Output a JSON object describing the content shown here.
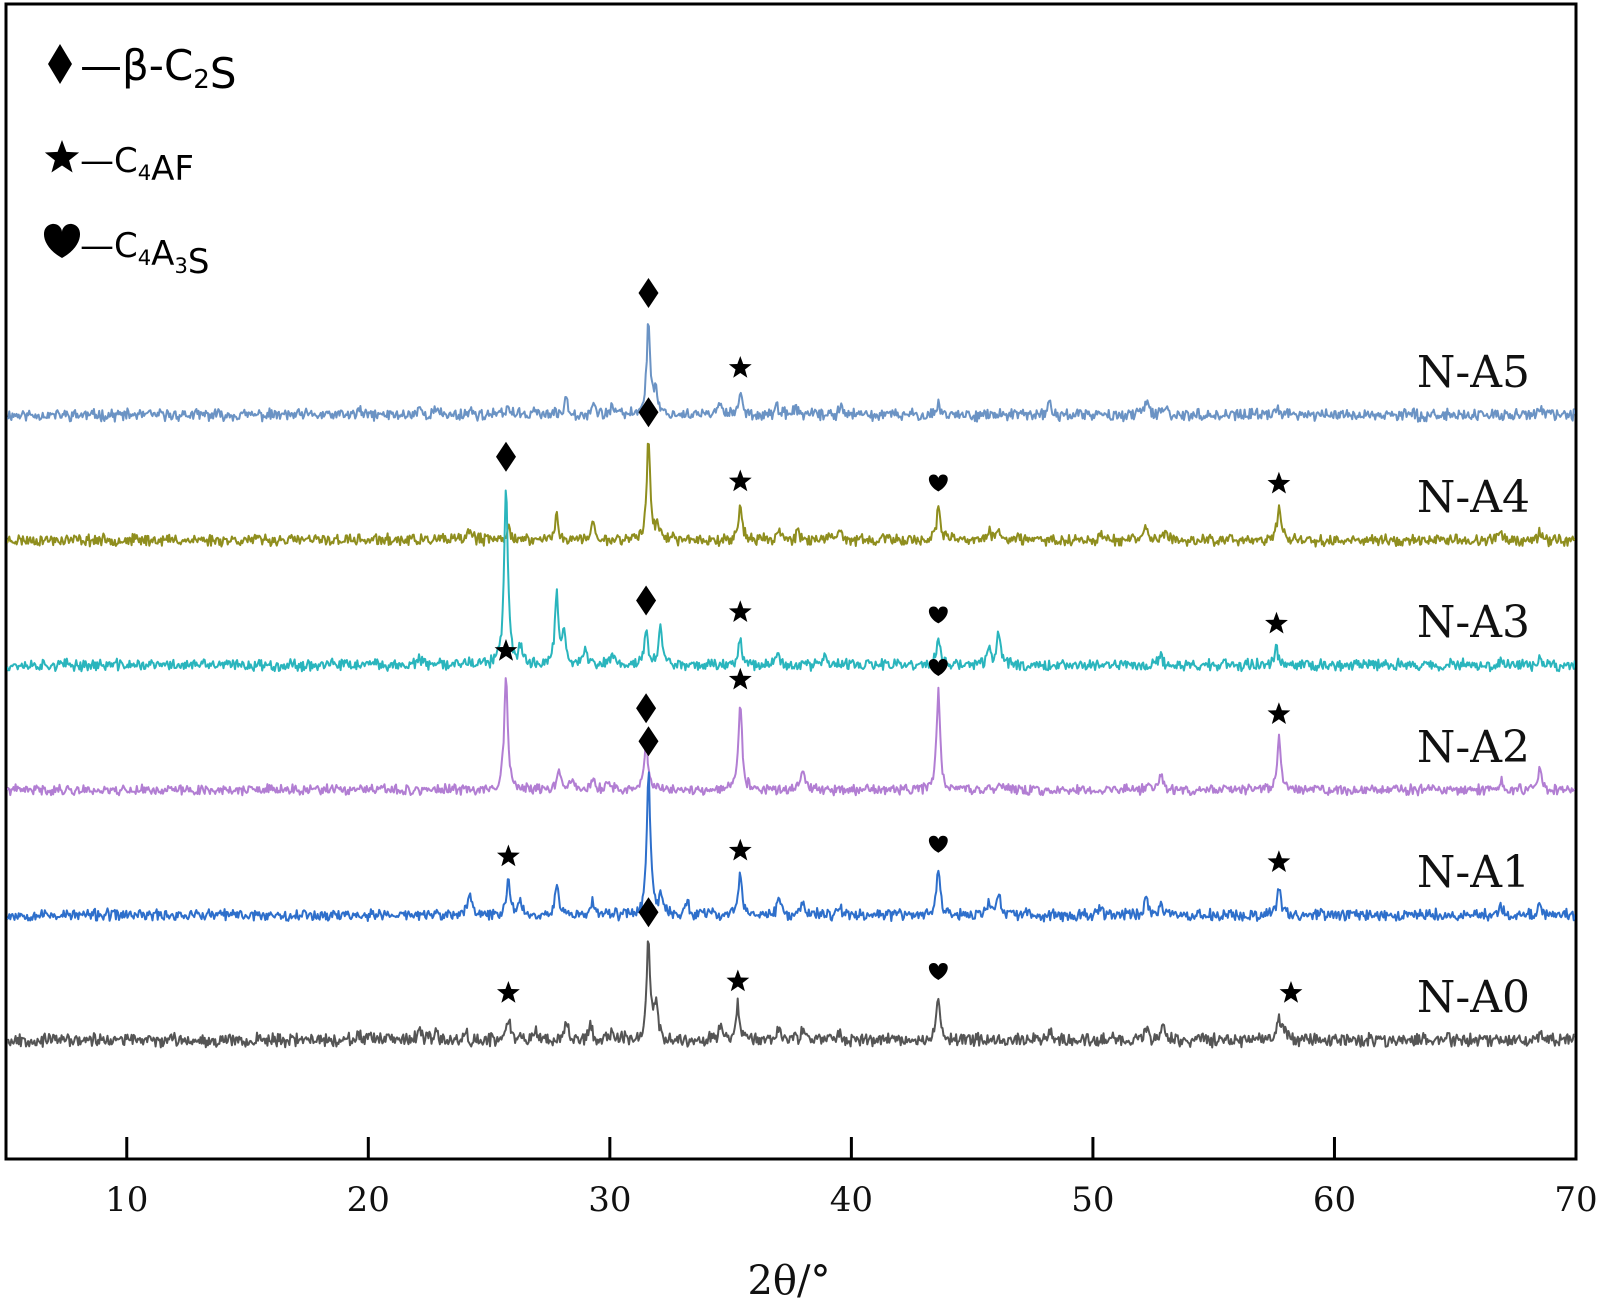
{
  "chart_data": {
    "type": "line",
    "xlabel": "2θ/°",
    "ylabel": "",
    "xlim": [
      5,
      70
    ],
    "xticks": [
      10,
      20,
      30,
      40,
      50,
      60,
      70
    ],
    "yticks_shown": false,
    "grid": false,
    "legend": {
      "placement": "top-left",
      "entries": [
        {
          "marker": "diamond",
          "symbol": "♦",
          "dash": "—",
          "phase": "β-C",
          "sub": "2",
          "tail": "S"
        },
        {
          "marker": "star",
          "symbol": "★",
          "dash": "—",
          "phase": "C",
          "sub": "4",
          "tail": "AF"
        },
        {
          "marker": "heart",
          "symbol": "♥",
          "dash": "—",
          "phase": "C",
          "sub": "4",
          "mid": "A",
          "sub2": "3",
          "tail": "S"
        }
      ]
    },
    "series": [
      {
        "name": "N-A5",
        "color": "#6b93c4",
        "offset": 5,
        "noise": 0.04,
        "seed": 11,
        "peaks": [
          [
            31.6,
            0.8
          ],
          [
            31.9,
            0.2
          ],
          [
            35.4,
            0.2
          ],
          [
            34.6,
            0.12
          ],
          [
            28.2,
            0.15
          ],
          [
            29.3,
            0.1
          ],
          [
            30.1,
            0.08
          ],
          [
            25.8,
            0.08
          ],
          [
            26.9,
            0.06
          ],
          [
            36.9,
            0.07
          ],
          [
            37.7,
            0.07
          ],
          [
            39.6,
            0.09
          ],
          [
            43.6,
            0.1
          ],
          [
            48.2,
            0.1
          ],
          [
            52.2,
            0.12
          ],
          [
            53.0,
            0.06
          ],
          [
            57.6,
            0.08
          ],
          [
            22.1,
            0.06
          ],
          [
            22.8,
            0.05
          ],
          [
            24.2,
            0.05
          ],
          [
            19.6,
            0.04
          ],
          [
            68.5,
            0.06
          ]
        ],
        "markers": [
          [
            "diamond",
            31.6
          ],
          [
            "star",
            35.4
          ]
        ]
      },
      {
        "name": "N-A4",
        "color": "#8f8e1e",
        "offset": 4,
        "noise": 0.04,
        "seed": 23,
        "peaks": [
          [
            31.6,
            0.85
          ],
          [
            32.0,
            0.12
          ],
          [
            35.4,
            0.3
          ],
          [
            43.6,
            0.28
          ],
          [
            57.7,
            0.28
          ],
          [
            27.8,
            0.2
          ],
          [
            29.3,
            0.14
          ],
          [
            25.8,
            0.12
          ],
          [
            24.2,
            0.1
          ],
          [
            37.0,
            0.1
          ],
          [
            37.8,
            0.08
          ],
          [
            39.5,
            0.08
          ],
          [
            45.7,
            0.08
          ],
          [
            46.1,
            0.1
          ],
          [
            50.3,
            0.06
          ],
          [
            52.2,
            0.12
          ],
          [
            53.0,
            0.06
          ],
          [
            66.8,
            0.06
          ],
          [
            68.5,
            0.08
          ]
        ],
        "markers": [
          [
            "diamond",
            31.6
          ],
          [
            "star",
            35.4
          ],
          [
            "heart",
            43.6
          ],
          [
            "star",
            57.7
          ]
        ]
      },
      {
        "name": "N-A3",
        "color": "#2ab5bd",
        "offset": 3,
        "noise": 0.04,
        "seed": 37,
        "peaks": [
          [
            25.7,
            1.55
          ],
          [
            27.8,
            0.6
          ],
          [
            28.1,
            0.3
          ],
          [
            31.5,
            0.3
          ],
          [
            32.1,
            0.32
          ],
          [
            35.4,
            0.25
          ],
          [
            43.6,
            0.22
          ],
          [
            46.1,
            0.3
          ],
          [
            45.7,
            0.15
          ],
          [
            26.3,
            0.15
          ],
          [
            29.0,
            0.12
          ],
          [
            30.1,
            0.1
          ],
          [
            36.9,
            0.12
          ],
          [
            38.9,
            0.08
          ],
          [
            52.8,
            0.07
          ],
          [
            57.6,
            0.15
          ],
          [
            22.1,
            0.06
          ],
          [
            24.0,
            0.06
          ],
          [
            66.9,
            0.05
          ],
          [
            68.5,
            0.06
          ]
        ],
        "markers": [
          [
            "diamond",
            25.7
          ],
          [
            "diamond",
            31.5
          ],
          [
            "star",
            35.4
          ],
          [
            "heart",
            43.6
          ],
          [
            "star",
            57.6
          ]
        ]
      },
      {
        "name": "N-A2",
        "color": "#b27ed3",
        "offset": 2,
        "noise": 0.035,
        "seed": 41,
        "peaks": [
          [
            25.7,
            1.0
          ],
          [
            31.5,
            0.45
          ],
          [
            35.4,
            0.75
          ],
          [
            43.6,
            0.85
          ],
          [
            57.7,
            0.45
          ],
          [
            27.9,
            0.15
          ],
          [
            28.4,
            0.1
          ],
          [
            29.3,
            0.08
          ],
          [
            30.0,
            0.07
          ],
          [
            38.0,
            0.15
          ],
          [
            46.1,
            0.06
          ],
          [
            52.8,
            0.15
          ],
          [
            52.3,
            0.07
          ],
          [
            66.9,
            0.08
          ],
          [
            68.5,
            0.18
          ]
        ],
        "markers": [
          [
            "star",
            25.7
          ],
          [
            "diamond",
            31.5
          ],
          [
            "star",
            35.4
          ],
          [
            "heart",
            43.6
          ],
          [
            "star",
            57.7
          ]
        ]
      },
      {
        "name": "N-A1",
        "color": "#2e6fcb",
        "offset": 1,
        "noise": 0.04,
        "seed": 53,
        "peaks": [
          [
            31.6,
            1.25
          ],
          [
            32.1,
            0.15
          ],
          [
            25.8,
            0.3
          ],
          [
            26.3,
            0.12
          ],
          [
            27.8,
            0.28
          ],
          [
            24.2,
            0.18
          ],
          [
            29.3,
            0.12
          ],
          [
            33.2,
            0.1
          ],
          [
            35.4,
            0.35
          ],
          [
            37.0,
            0.12
          ],
          [
            38.0,
            0.1
          ],
          [
            39.5,
            0.08
          ],
          [
            43.6,
            0.4
          ],
          [
            45.7,
            0.1
          ],
          [
            46.1,
            0.18
          ],
          [
            50.3,
            0.08
          ],
          [
            52.2,
            0.15
          ],
          [
            52.8,
            0.1
          ],
          [
            57.7,
            0.25
          ],
          [
            66.9,
            0.07
          ],
          [
            68.5,
            0.1
          ]
        ],
        "markers": [
          [
            "diamond",
            31.6
          ],
          [
            "star",
            25.8
          ],
          [
            "star",
            35.4
          ],
          [
            "heart",
            43.6
          ],
          [
            "star",
            57.7
          ]
        ]
      },
      {
        "name": "N-A0",
        "color": "#555555",
        "offset": 0,
        "noise": 0.045,
        "seed": 67,
        "peaks": [
          [
            31.6,
            0.85
          ],
          [
            31.9,
            0.3
          ],
          [
            25.8,
            0.2
          ],
          [
            28.2,
            0.18
          ],
          [
            26.9,
            0.1
          ],
          [
            29.2,
            0.12
          ],
          [
            30.1,
            0.08
          ],
          [
            35.3,
            0.3
          ],
          [
            34.6,
            0.12
          ],
          [
            43.6,
            0.38
          ],
          [
            37.0,
            0.1
          ],
          [
            38.0,
            0.1
          ],
          [
            39.5,
            0.08
          ],
          [
            48.2,
            0.08
          ],
          [
            52.2,
            0.12
          ],
          [
            52.9,
            0.1
          ],
          [
            57.7,
            0.2
          ],
          [
            57.9,
            0.1
          ],
          [
            22.1,
            0.07
          ],
          [
            22.8,
            0.06
          ],
          [
            24.0,
            0.08
          ],
          [
            19.6,
            0.05
          ],
          [
            68.5,
            0.06
          ]
        ],
        "markers": [
          [
            "diamond",
            31.6
          ],
          [
            "star",
            25.8
          ],
          [
            "star",
            35.3
          ],
          [
            "heart",
            43.6
          ],
          [
            "star",
            58.2
          ]
        ]
      }
    ]
  }
}
